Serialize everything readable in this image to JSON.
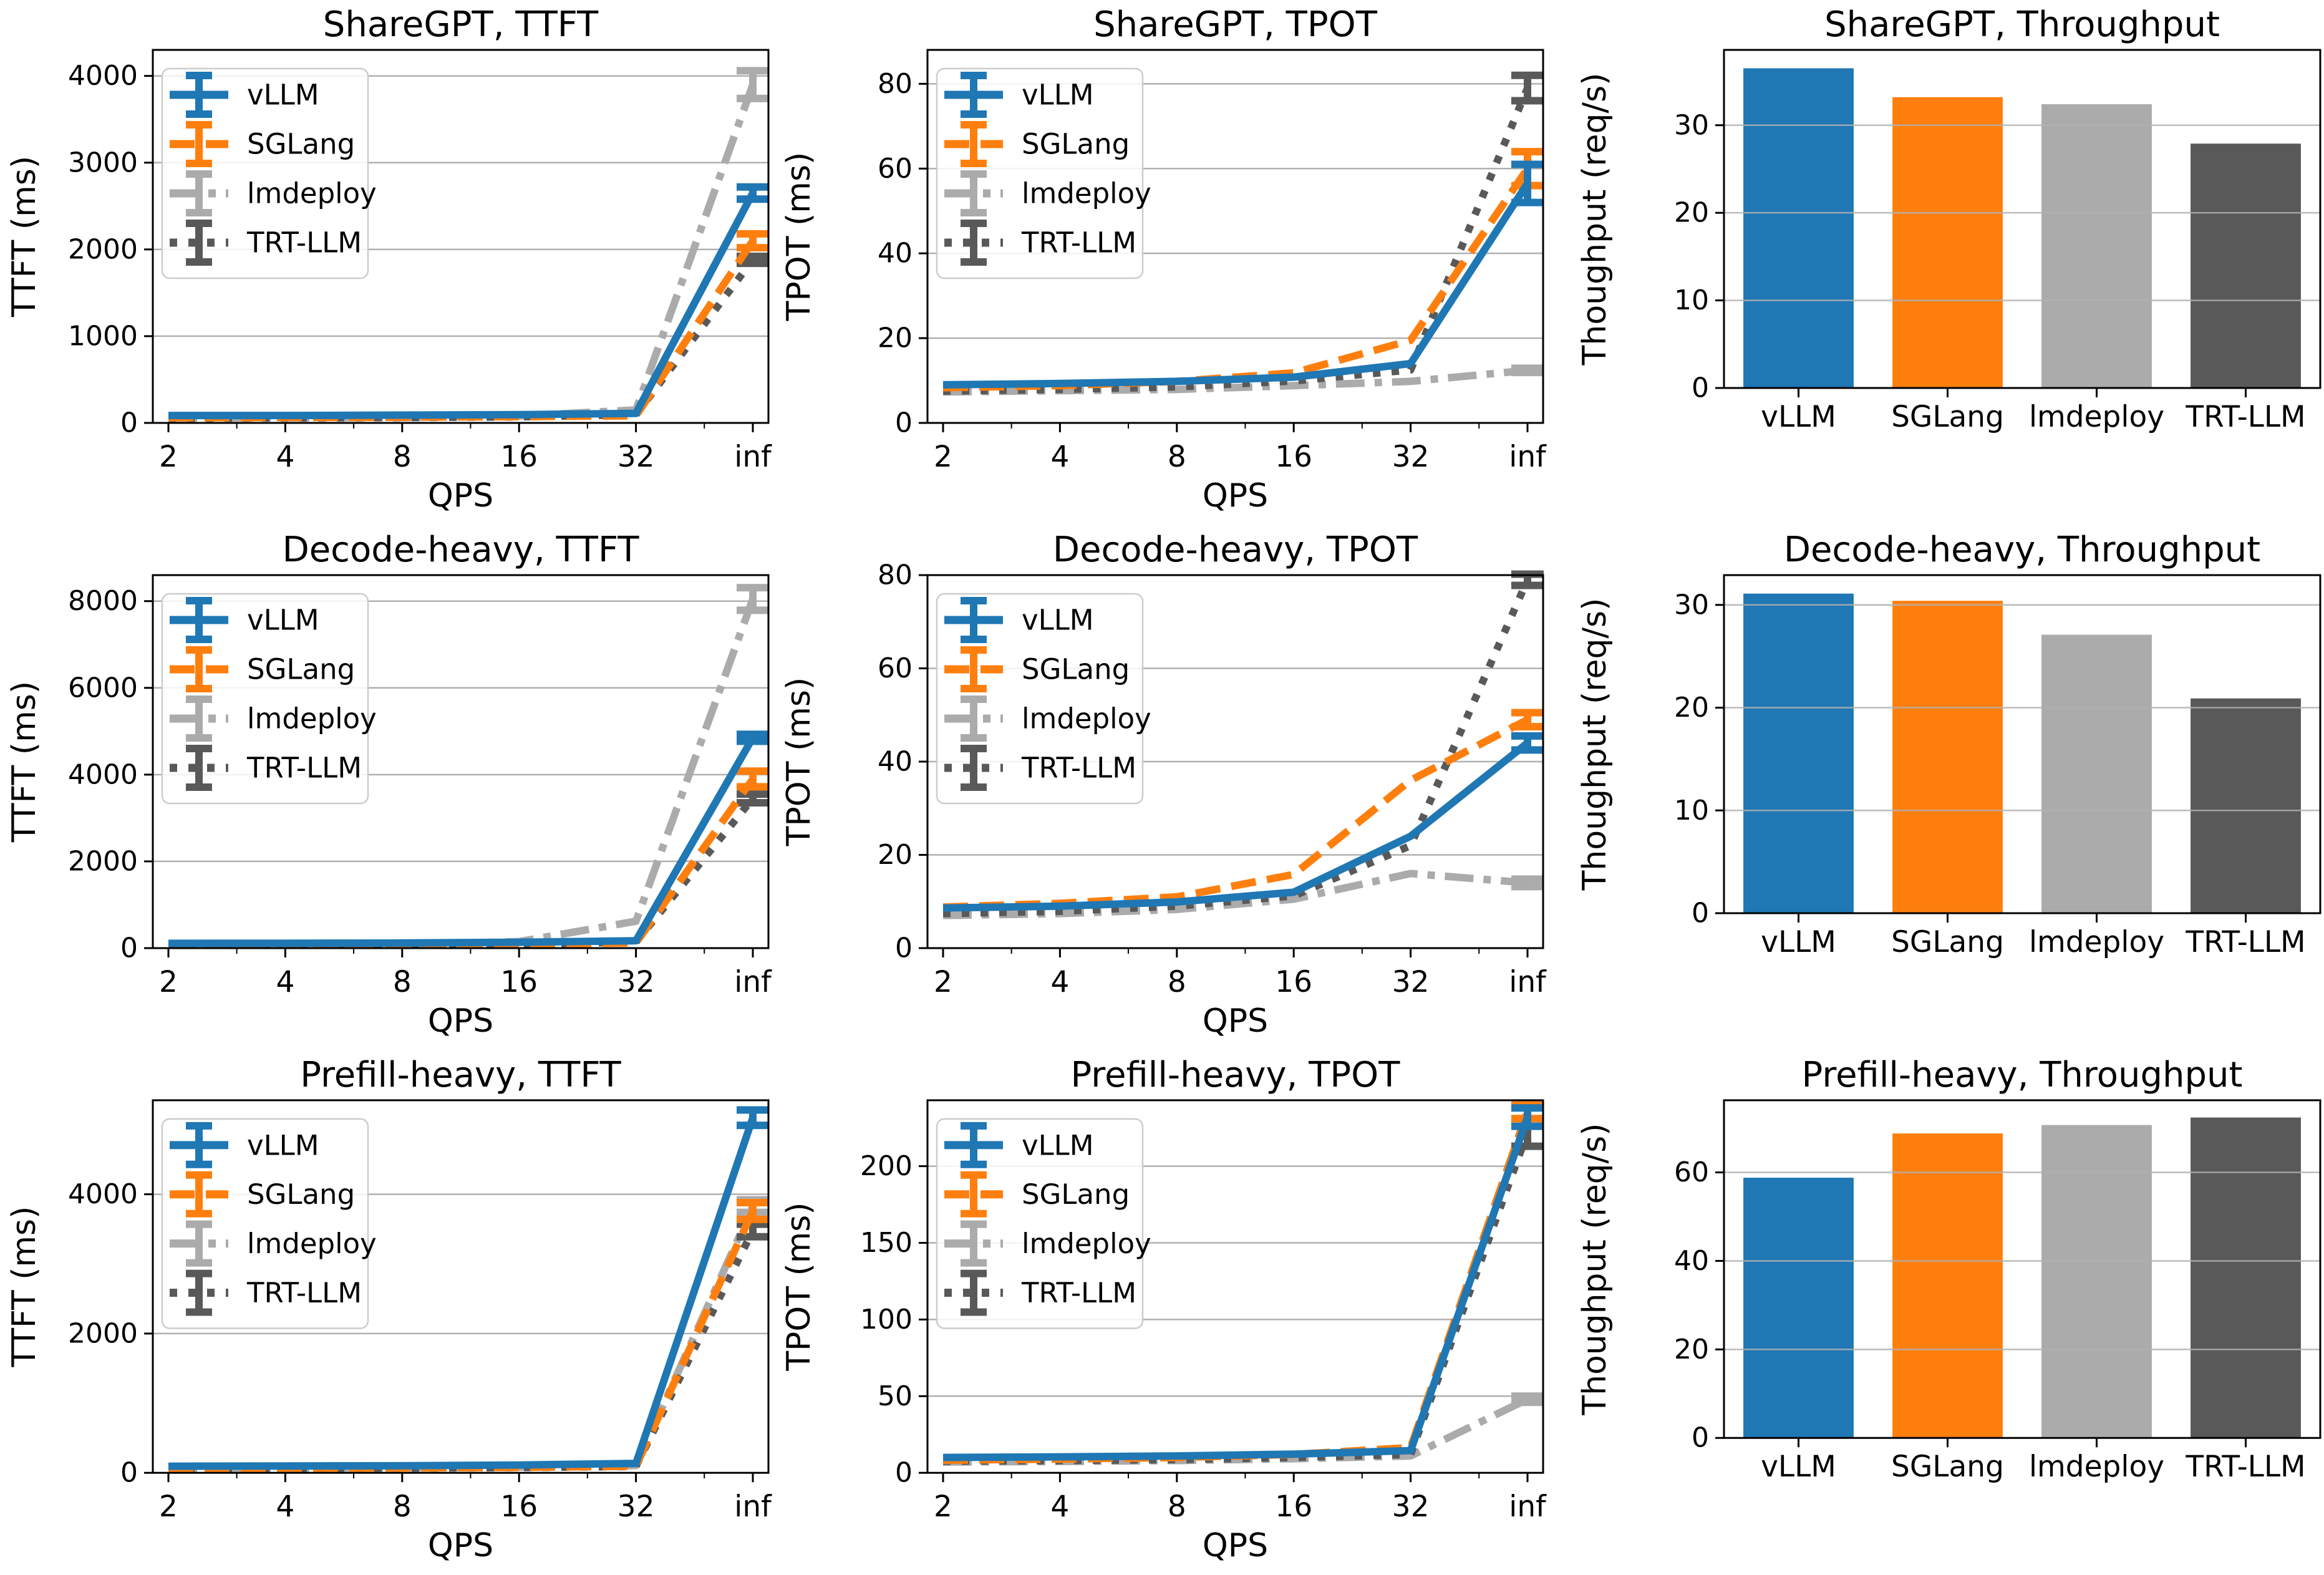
{
  "figure": {
    "background": "#ffffff",
    "grid_color": "#b0b0b0",
    "spine_color": "#000000",
    "text_color": "#000000",
    "engines": [
      {
        "name": "vLLM",
        "color": "#1f77b4",
        "linestyle": "solid"
      },
      {
        "name": "SGLang",
        "color": "#ff7f0e",
        "linestyle": "dashed"
      },
      {
        "name": "lmdeploy",
        "color": "#ababab",
        "linestyle": "dashdot"
      },
      {
        "name": "TRT-LLM",
        "color": "#595959",
        "linestyle": "dotted"
      }
    ]
  },
  "chart_data": [
    {
      "id": "sharegpt-ttft",
      "type": "line",
      "title": "ShareGPT, TTFT",
      "xlabel": "QPS",
      "ylabel": "TTFT (ms)",
      "x_ticklabels": [
        "2",
        "4",
        "8",
        "16",
        "32",
        "inf"
      ],
      "yticks": [
        0,
        1000,
        2000,
        3000,
        4000
      ],
      "ylim": [
        0,
        4300
      ],
      "legend": [
        "vLLM",
        "SGLang",
        "lmdeploy",
        "TRT-LLM"
      ],
      "legend_position": "upper-left",
      "grid": true,
      "series": [
        {
          "name": "vLLM",
          "values": [
            85,
            85,
            90,
            95,
            110,
            2650
          ],
          "err_last": 70
        },
        {
          "name": "SGLang",
          "values": [
            60,
            62,
            66,
            72,
            82,
            2100
          ],
          "err_last": 80
        },
        {
          "name": "lmdeploy",
          "values": [
            55,
            58,
            62,
            80,
            150,
            3900
          ],
          "err_last": 160
        },
        {
          "name": "TRT-LLM",
          "values": [
            55,
            58,
            62,
            70,
            95,
            1880
          ],
          "err_last": 40
        }
      ]
    },
    {
      "id": "sharegpt-tpot",
      "type": "line",
      "title": "ShareGPT, TPOT",
      "xlabel": "QPS",
      "ylabel": "TPOT (ms)",
      "x_ticklabels": [
        "2",
        "4",
        "8",
        "16",
        "32",
        "inf"
      ],
      "yticks": [
        0,
        20,
        40,
        60,
        80
      ],
      "ylim": [
        0,
        88
      ],
      "legend": [
        "vLLM",
        "SGLang",
        "lmdeploy",
        "TRT-LLM"
      ],
      "legend_position": "upper-left",
      "grid": true,
      "series": [
        {
          "name": "vLLM",
          "values": [
            9.0,
            9.3,
            9.8,
            10.8,
            14.0,
            56.5
          ],
          "err_last": 4.5
        },
        {
          "name": "SGLang",
          "values": [
            8.3,
            8.8,
            9.8,
            11.8,
            19.5,
            60.0
          ],
          "err_last": 4.0
        },
        {
          "name": "lmdeploy",
          "values": [
            7.3,
            7.6,
            7.9,
            8.8,
            9.8,
            12.4
          ],
          "err_last": 0.5
        },
        {
          "name": "TRT-LLM",
          "values": [
            7.5,
            7.9,
            8.5,
            9.9,
            12.5,
            79.0
          ],
          "err_last": 3.0
        }
      ]
    },
    {
      "id": "sharegpt-throughput",
      "type": "bar",
      "title": "ShareGPT, Throughput",
      "xlabel": "",
      "ylabel": "Thoughput (req/s)",
      "categories": [
        "vLLM",
        "SGLang",
        "lmdeploy",
        "TRT-LLM"
      ],
      "values": [
        36.5,
        33.2,
        32.4,
        27.9
      ],
      "yticks": [
        0,
        10,
        20,
        30
      ],
      "ylim": [
        0,
        38.6
      ],
      "grid": true
    },
    {
      "id": "decode-heavy-ttft",
      "type": "line",
      "title": "Decode-heavy, TTFT",
      "xlabel": "QPS",
      "ylabel": "TTFT (ms)",
      "x_ticklabels": [
        "2",
        "4",
        "8",
        "16",
        "32",
        "inf"
      ],
      "yticks": [
        0,
        2000,
        4000,
        6000,
        8000
      ],
      "ylim": [
        0,
        8600
      ],
      "legend": [
        "vLLM",
        "SGLang",
        "lmdeploy",
        "TRT-LLM"
      ],
      "legend_position": "upper-left",
      "grid": true,
      "series": [
        {
          "name": "vLLM",
          "values": [
            110,
            112,
            118,
            135,
            170,
            4850
          ],
          "err_last": 80
        },
        {
          "name": "SGLang",
          "values": [
            75,
            78,
            84,
            95,
            120,
            3900
          ],
          "err_last": 180
        },
        {
          "name": "lmdeploy",
          "values": [
            65,
            70,
            80,
            150,
            620,
            8050
          ],
          "err_last": 260
        },
        {
          "name": "TRT-LLM",
          "values": [
            65,
            70,
            78,
            90,
            140,
            3450
          ],
          "err_last": 100
        }
      ]
    },
    {
      "id": "decode-heavy-tpot",
      "type": "line",
      "title": "Decode-heavy, TPOT",
      "xlabel": "QPS",
      "ylabel": "TPOT (ms)",
      "x_ticklabels": [
        "2",
        "4",
        "8",
        "16",
        "32",
        "inf"
      ],
      "yticks": [
        0,
        20,
        40,
        60,
        80
      ],
      "ylim": [
        0,
        80
      ],
      "legend": [
        "vLLM",
        "SGLang",
        "lmdeploy",
        "TRT-LLM"
      ],
      "legend_position": "upper-left",
      "grid": true,
      "series": [
        {
          "name": "vLLM",
          "values": [
            8.6,
            9.0,
            9.9,
            12.0,
            24.0,
            44.0
          ],
          "err_last": 1.5
        },
        {
          "name": "SGLang",
          "values": [
            8.8,
            9.6,
            11.0,
            15.8,
            36.0,
            49.0
          ],
          "err_last": 1.5
        },
        {
          "name": "lmdeploy",
          "values": [
            7.0,
            7.4,
            8.3,
            10.5,
            16.0,
            14.0
          ],
          "err_last": 0.8
        },
        {
          "name": "TRT-LLM",
          "values": [
            7.4,
            7.9,
            9.0,
            11.2,
            22.0,
            79.0
          ],
          "err_last": 1.2
        }
      ]
    },
    {
      "id": "decode-heavy-throughput",
      "type": "bar",
      "title": "Decode-heavy, Throughput",
      "xlabel": "",
      "ylabel": "Thoughput (req/s)",
      "categories": [
        "vLLM",
        "SGLang",
        "lmdeploy",
        "TRT-LLM"
      ],
      "values": [
        31.1,
        30.4,
        27.1,
        20.9
      ],
      "yticks": [
        0,
        10,
        20,
        30
      ],
      "ylim": [
        0,
        32.9
      ],
      "grid": true
    },
    {
      "id": "prefill-heavy-ttft",
      "type": "line",
      "title": "Prefill-heavy, TTFT",
      "xlabel": "QPS",
      "ylabel": "TTFT (ms)",
      "x_ticklabels": [
        "2",
        "4",
        "8",
        "16",
        "32",
        "inf"
      ],
      "yticks": [
        0,
        2000,
        4000
      ],
      "ylim": [
        0,
        5350
      ],
      "legend": [
        "vLLM",
        "SGLang",
        "lmdeploy",
        "TRT-LLM"
      ],
      "legend_position": "upper-left",
      "grid": true,
      "series": [
        {
          "name": "vLLM",
          "values": [
            95,
            98,
            102,
            112,
            135,
            5100
          ],
          "err_last": 110
        },
        {
          "name": "SGLang",
          "values": [
            62,
            65,
            70,
            78,
            95,
            3760
          ],
          "err_last": 120
        },
        {
          "name": "lmdeploy",
          "values": [
            62,
            66,
            72,
            82,
            105,
            3830
          ],
          "err_last": 90
        },
        {
          "name": "TRT-LLM",
          "values": [
            58,
            62,
            68,
            76,
            92,
            3480
          ],
          "err_last": 90
        }
      ]
    },
    {
      "id": "prefill-heavy-tpot",
      "type": "line",
      "title": "Prefill-heavy, TPOT",
      "xlabel": "QPS",
      "ylabel": "TPOT (ms)",
      "x_ticklabels": [
        "2",
        "4",
        "8",
        "16",
        "32",
        "inf"
      ],
      "yticks": [
        0,
        50,
        100,
        150,
        200
      ],
      "ylim": [
        0,
        243
      ],
      "legend": [
        "vLLM",
        "SGLang",
        "lmdeploy",
        "TRT-LLM"
      ],
      "legend_position": "upper-left",
      "grid": true,
      "series": [
        {
          "name": "vLLM",
          "values": [
            10.0,
            10.4,
            11.0,
            12.2,
            14.5,
            232
          ],
          "err_last": 6
        },
        {
          "name": "SGLang",
          "values": [
            8.2,
            9.0,
            10.0,
            12.0,
            16.5,
            236
          ],
          "err_last": 5
        },
        {
          "name": "lmdeploy",
          "values": [
            7.0,
            7.4,
            8.0,
            9.2,
            11.0,
            48
          ],
          "err_last": 2
        },
        {
          "name": "TRT-LLM",
          "values": [
            7.6,
            8.0,
            8.6,
            10.0,
            12.0,
            222
          ],
          "err_last": 9
        }
      ]
    },
    {
      "id": "prefill-heavy-throughput",
      "type": "bar",
      "title": "Prefill-heavy, Throughput",
      "xlabel": "",
      "ylabel": "Thoughput (req/s)",
      "categories": [
        "vLLM",
        "SGLang",
        "lmdeploy",
        "TRT-LLM"
      ],
      "values": [
        58.8,
        68.8,
        70.7,
        72.4
      ],
      "yticks": [
        0,
        20,
        40,
        60
      ],
      "ylim": [
        0,
        76.3
      ],
      "grid": true
    }
  ]
}
